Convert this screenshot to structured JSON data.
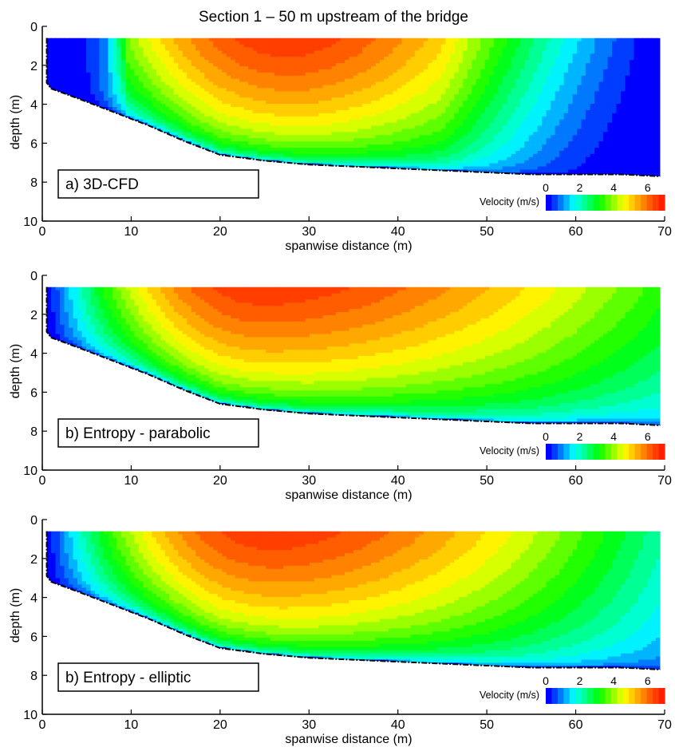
{
  "figure_title": "Section 1 – 50 m upstream of the bridge",
  "colorbar": {
    "label": "Velocity (m/s)",
    "ticks": [
      0,
      2,
      4,
      6
    ],
    "range": [
      0,
      7
    ],
    "colormap": [
      "#0000ff",
      "#0080ff",
      "#00ffff",
      "#00ff80",
      "#00ff00",
      "#80ff00",
      "#ffff00",
      "#ffb000",
      "#ff6000",
      "#ff2000"
    ]
  },
  "chart_data": [
    {
      "type": "heatmap",
      "panel_label": "a) 3D-CFD",
      "xlabel": "spanwise distance (m)",
      "ylabel": "depth (m)",
      "xlim": [
        0,
        70
      ],
      "ylim": [
        10,
        0
      ],
      "xticks": [
        0,
        10,
        20,
        30,
        40,
        50,
        60,
        70
      ],
      "yticks": [
        0,
        2,
        4,
        6,
        8,
        10
      ],
      "bed_profile": {
        "x": [
          0.5,
          0.5,
          1,
          4,
          8,
          12,
          16,
          20,
          25,
          30,
          40,
          50,
          55,
          60,
          65,
          69.5
        ],
        "depth": [
          0.6,
          2.9,
          3.2,
          3.7,
          4.4,
          5.1,
          5.9,
          6.6,
          6.9,
          7.1,
          7.3,
          7.5,
          7.6,
          7.6,
          7.6,
          7.7
        ]
      },
      "velocity_model": {
        "kind": "cfd",
        "core_x": 28,
        "core_depth": 1.5,
        "vmax": 6.6,
        "low_zone_left_x": 7.5,
        "low_zone_right_x": 60
      }
    },
    {
      "type": "heatmap",
      "panel_label": "b) Entropy - parabolic",
      "xlabel": "spanwise distance (m)",
      "ylabel": "depth (m)",
      "xlim": [
        0,
        70
      ],
      "ylim": [
        10,
        0
      ],
      "xticks": [
        0,
        10,
        20,
        30,
        40,
        50,
        60,
        70
      ],
      "yticks": [
        0,
        2,
        4,
        6,
        8,
        10
      ],
      "bed_profile": {
        "x": [
          0.5,
          0.5,
          1,
          4,
          8,
          12,
          16,
          20,
          25,
          30,
          40,
          50,
          55,
          60,
          65,
          69.5
        ],
        "depth": [
          0.6,
          2.9,
          3.2,
          3.7,
          4.4,
          5.1,
          5.9,
          6.6,
          6.9,
          7.1,
          7.3,
          7.5,
          7.6,
          7.6,
          7.6,
          7.7
        ]
      },
      "velocity_model": {
        "kind": "parabolic",
        "core_x": 25,
        "core_depth": 1.0,
        "vmax": 6.6,
        "edge_value_right": 3.3
      }
    },
    {
      "type": "heatmap",
      "panel_label": "b) Entropy - elliptic",
      "xlabel": "spanwise distance (m)",
      "ylabel": "depth (m)",
      "xlim": [
        0,
        70
      ],
      "ylim": [
        10,
        0
      ],
      "xticks": [
        0,
        10,
        20,
        30,
        40,
        50,
        60,
        70
      ],
      "yticks": [
        0,
        2,
        4,
        6,
        8,
        10
      ],
      "bed_profile": {
        "x": [
          0.5,
          0.5,
          1,
          4,
          8,
          12,
          16,
          20,
          25,
          30,
          40,
          50,
          55,
          60,
          65,
          69.5
        ],
        "depth": [
          0.6,
          2.9,
          3.2,
          3.7,
          4.4,
          5.1,
          5.9,
          6.6,
          6.9,
          7.1,
          7.3,
          7.5,
          7.6,
          7.6,
          7.6,
          7.7
        ]
      },
      "velocity_model": {
        "kind": "elliptic",
        "core_x": 26,
        "core_depth": 1.2,
        "vmax": 6.6,
        "edge_value_right": 2.2
      }
    }
  ]
}
